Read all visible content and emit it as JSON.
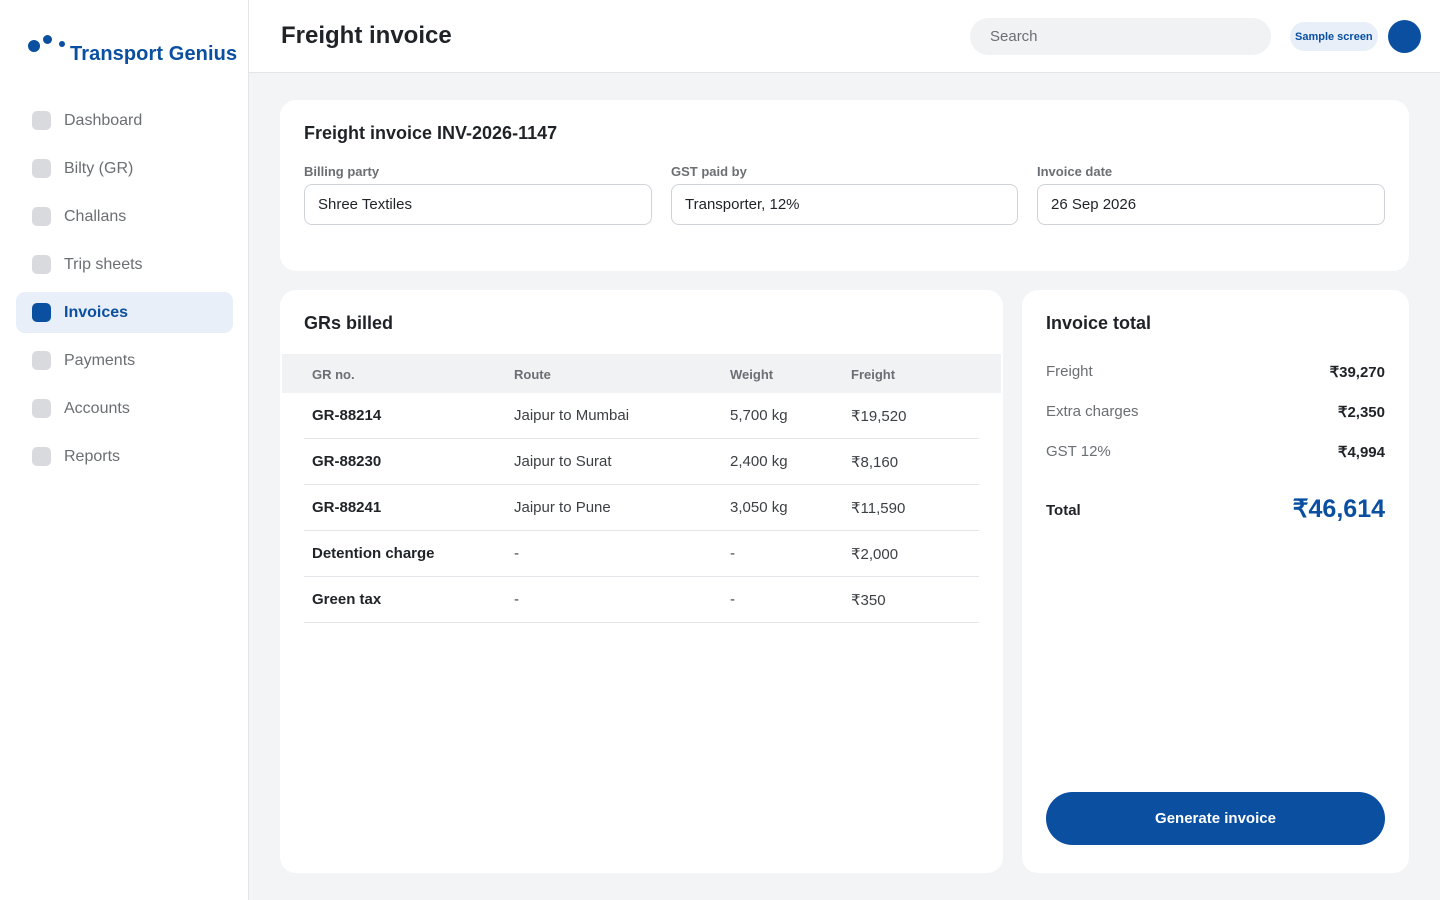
{
  "brand": {
    "name": "Transport Genius"
  },
  "sidebar": {
    "items": [
      {
        "label": "Dashboard",
        "active": false
      },
      {
        "label": "Bilty (GR)",
        "active": false
      },
      {
        "label": "Challans",
        "active": false
      },
      {
        "label": "Trip sheets",
        "active": false
      },
      {
        "label": "Invoices",
        "active": true
      },
      {
        "label": "Payments",
        "active": false
      },
      {
        "label": "Accounts",
        "active": false
      },
      {
        "label": "Reports",
        "active": false
      }
    ]
  },
  "header": {
    "title": "Freight invoice",
    "search_placeholder": "Search",
    "badge": "Sample screen"
  },
  "invoice": {
    "title": "Freight invoice INV-2026-1147",
    "billing_party": {
      "label": "Billing party",
      "value": "Shree Textiles"
    },
    "gst_paid_by": {
      "label": "GST paid by",
      "value": "Transporter, 12%"
    },
    "invoice_date": {
      "label": "Invoice date",
      "value": "26 Sep 2026"
    }
  },
  "grs": {
    "title": "GRs billed",
    "columns": [
      "GR no.",
      "Route",
      "Weight",
      "Freight"
    ],
    "rows": [
      [
        "GR-88214",
        "Jaipur to Mumbai",
        "5,700 kg",
        "₹19,520"
      ],
      [
        "GR-88230",
        "Jaipur to Surat",
        "2,400 kg",
        "₹8,160"
      ],
      [
        "GR-88241",
        "Jaipur to Pune",
        "3,050 kg",
        "₹11,590"
      ],
      [
        "Detention charge",
        "-",
        "-",
        "₹2,000"
      ],
      [
        "Green tax",
        "-",
        "-",
        "₹350"
      ]
    ]
  },
  "totals": {
    "title": "Invoice total",
    "lines": [
      {
        "label": "Freight",
        "value": "₹39,270"
      },
      {
        "label": "Extra charges",
        "value": "₹2,350"
      },
      {
        "label": "GST 12%",
        "value": "₹4,994"
      }
    ],
    "grand_label": "Total",
    "grand_value": "₹46,614",
    "button": "Generate invoice"
  },
  "colors": {
    "accent": "#0a4fa0",
    "accent_soft": "#e8eff9",
    "background": "#f3f4f6"
  }
}
